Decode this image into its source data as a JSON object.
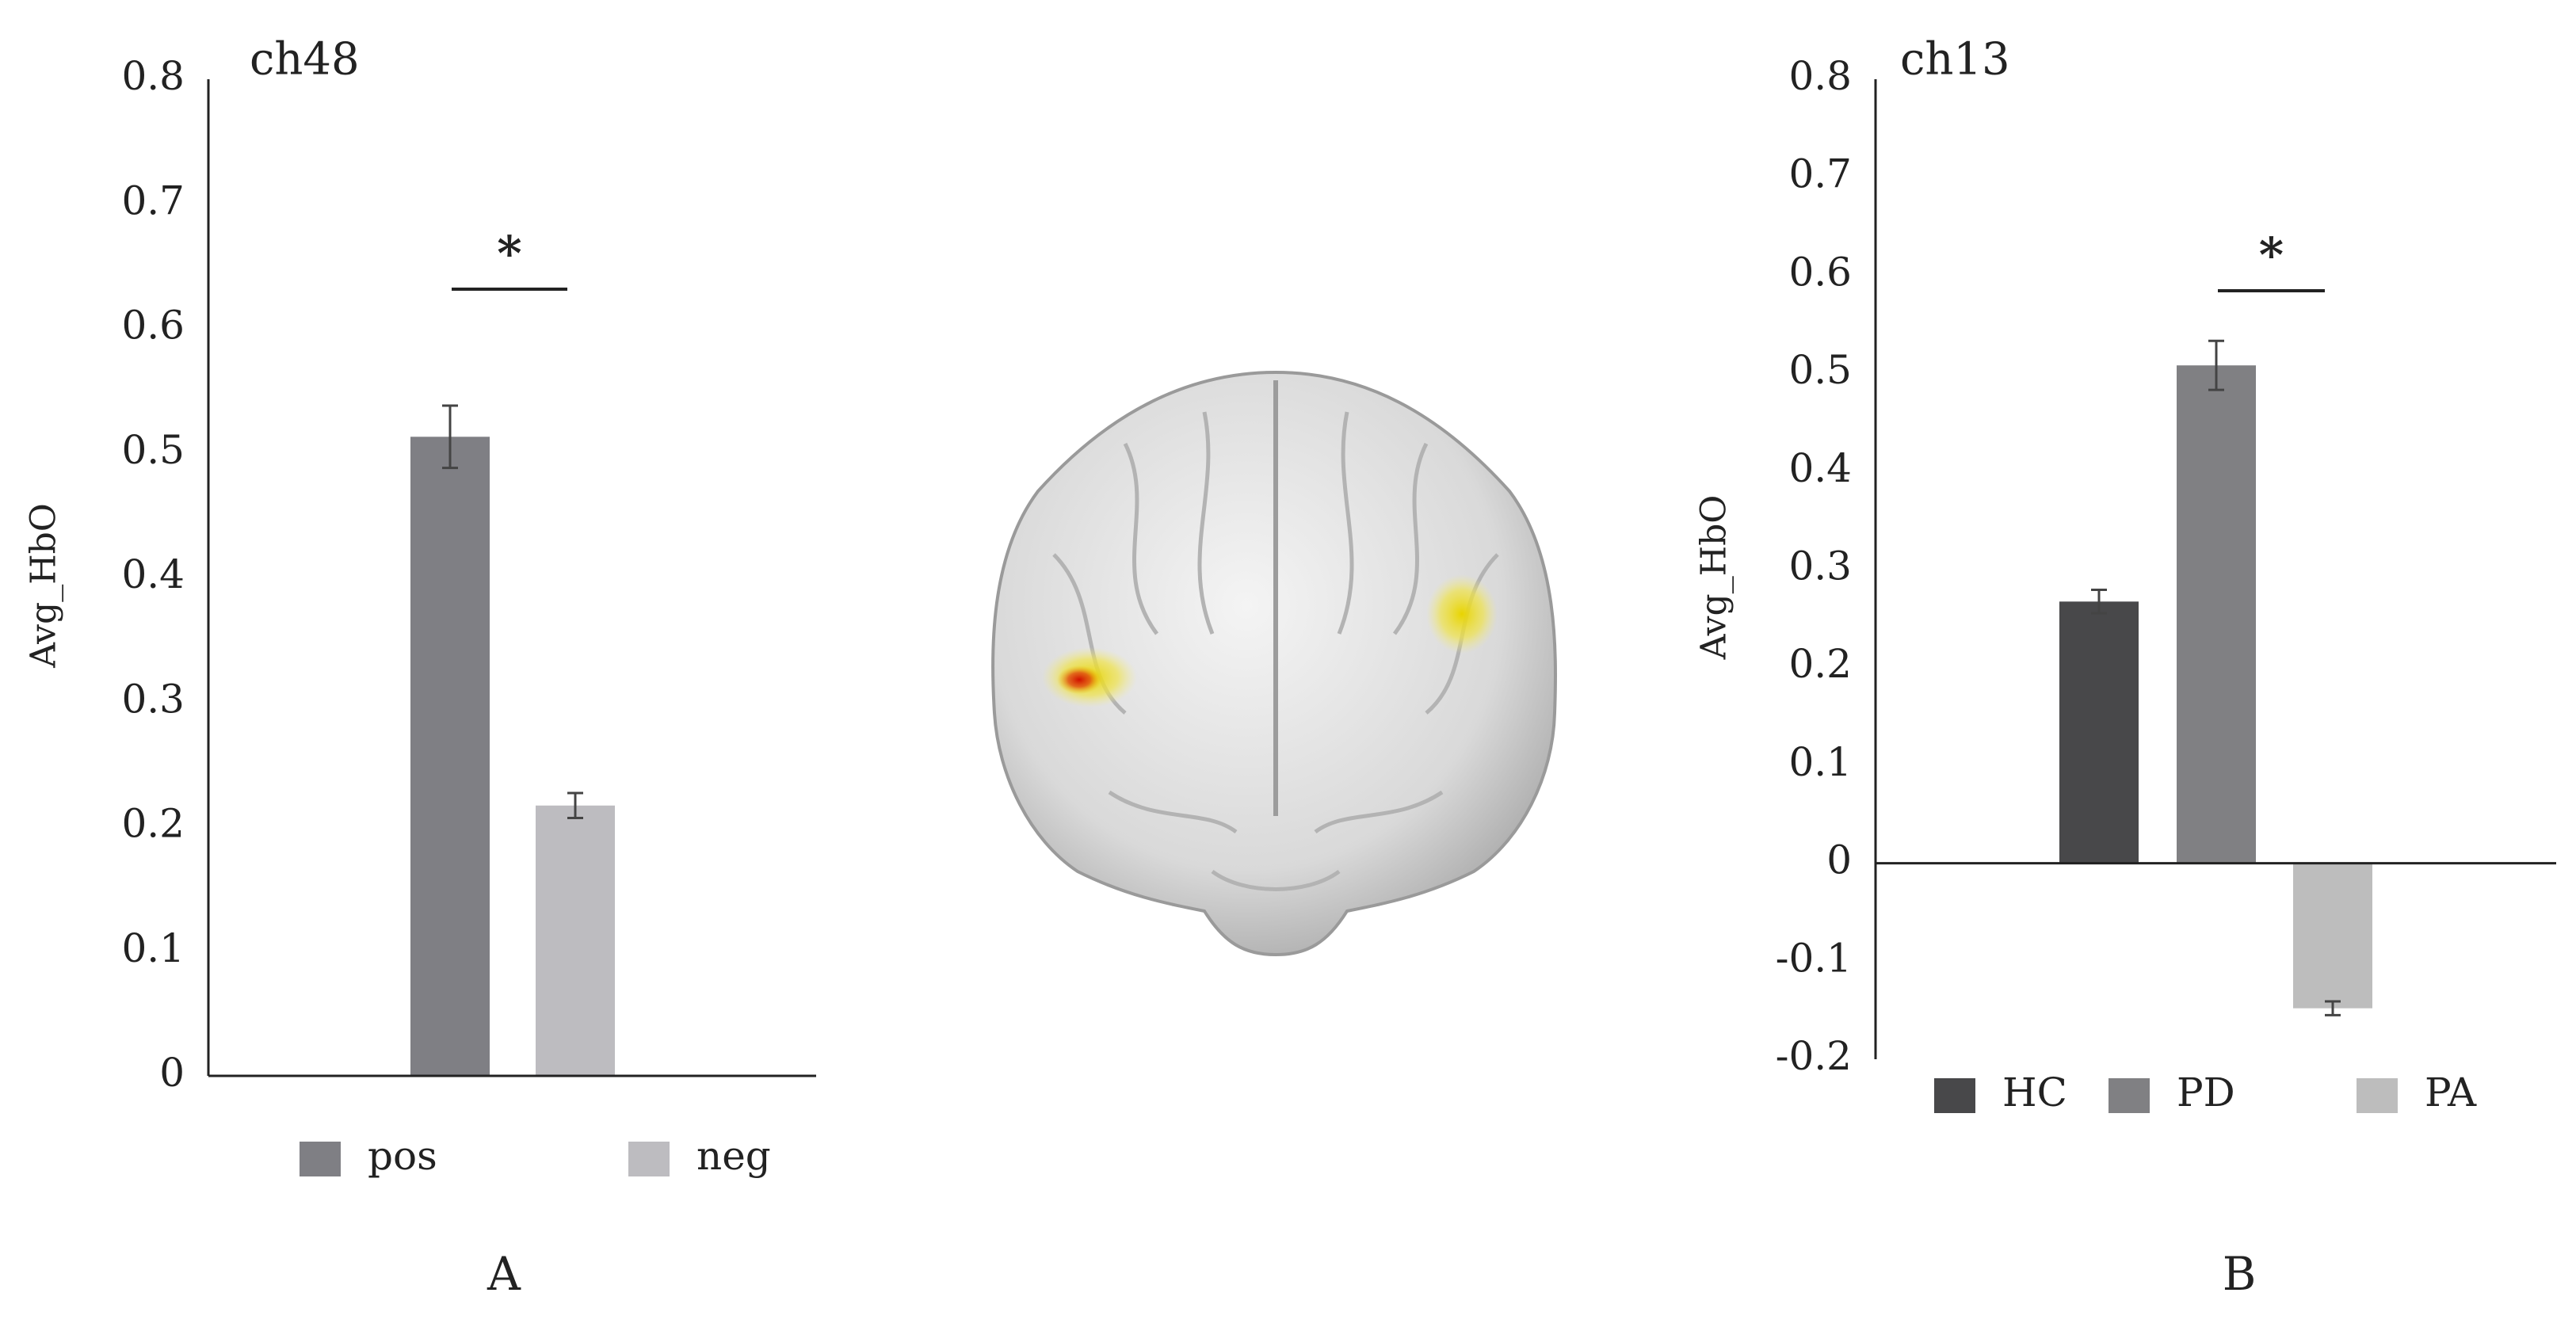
{
  "chart_data": [
    {
      "type": "bar",
      "title": "ch48",
      "y_label": "Avg_HbO",
      "panel_label": "A",
      "annotation": "*",
      "categories": [
        null
      ],
      "series": [
        {
          "name": "pos",
          "color": "#7f7f84",
          "values": [
            0.513
          ],
          "errors": [
            0.025
          ]
        },
        {
          "name": "neg",
          "color": "#bdbcc0",
          "values": [
            0.217
          ],
          "errors": [
            0.01
          ]
        }
      ],
      "ylim": [
        0,
        0.8
      ],
      "yticks": [
        0,
        0.1,
        0.2,
        0.3,
        0.4,
        0.5,
        0.6,
        0.7,
        0.8
      ]
    },
    {
      "type": "bar",
      "title": "ch13",
      "y_label": "Avg_HbO",
      "panel_label": "B",
      "annotation": "*",
      "categories": [
        null
      ],
      "series": [
        {
          "name": "HC",
          "color": "#48484a",
          "values": [
            0.267
          ],
          "errors": [
            0.012
          ]
        },
        {
          "name": "PD",
          "color": "#808083",
          "values": [
            0.508
          ],
          "errors": [
            0.025
          ]
        },
        {
          "name": "PA",
          "color": "#bdbdbd",
          "values": [
            -0.148
          ],
          "errors": [
            0.007
          ]
        }
      ],
      "ylim": [
        -0.2,
        0.8
      ],
      "yticks": [
        -0.2,
        -0.1,
        0,
        0.1,
        0.2,
        0.3,
        0.4,
        0.5,
        0.6,
        0.7,
        0.8
      ]
    }
  ]
}
